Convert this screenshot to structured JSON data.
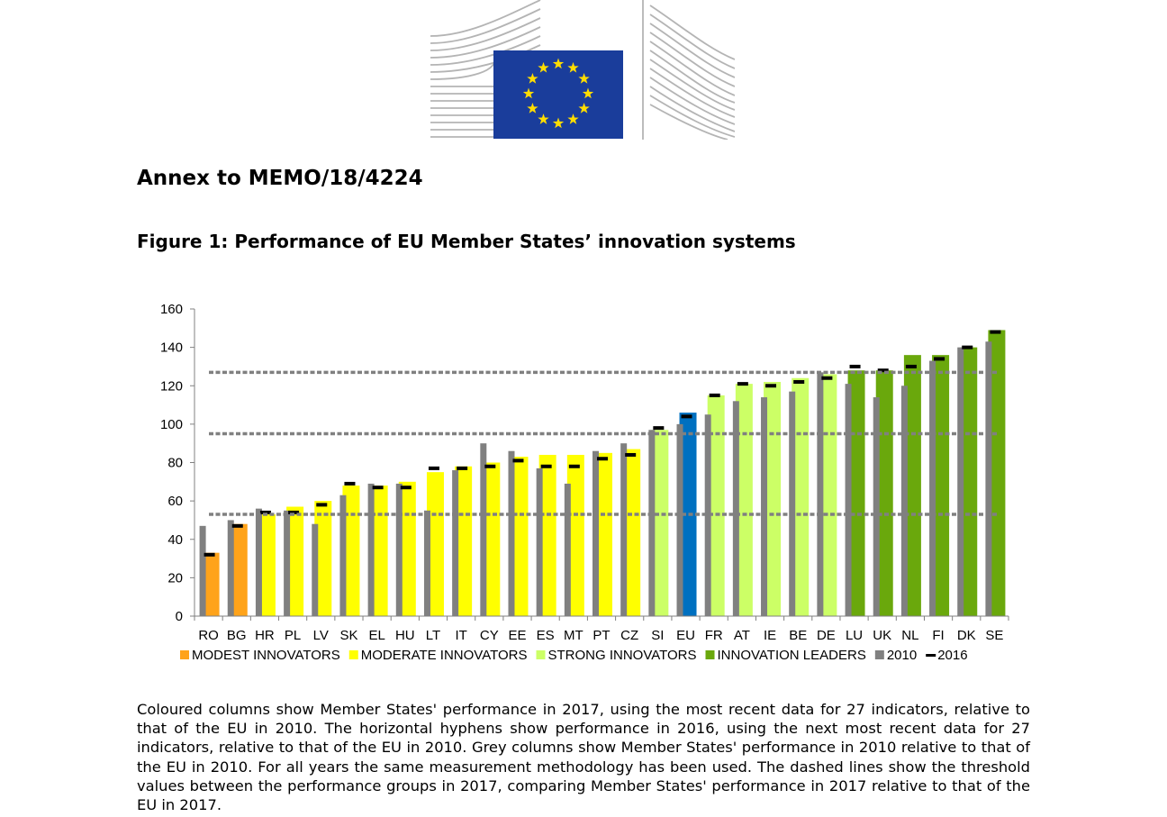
{
  "header": {
    "logo": "european-commission-logo",
    "title": "Annex to MEMO/18/4224"
  },
  "figure": {
    "title": "Figure 1: Performance of EU Member States’ innovation systems"
  },
  "caption": "Coloured columns show Member States' performance in 2017, using the most recent data for 27 indicators, relative to that of the EU in 2010. The horizontal hyphens show performance in 2016, using the next most recent data for 27 indicators, relative to that of the EU in 2010. Grey columns show Member States' performance in 2010 relative to that of the EU in 2010. For all years the same measurement methodology has been used. The dashed lines show the threshold values between the performance groups in 2017, comparing Member States' performance in 2017 relative to that of the EU in 2017.",
  "colors": {
    "modest": "#ffa31a",
    "moderate": "#ffff00",
    "strong": "#ccff66",
    "leaders": "#6aa80c",
    "eu": "#0070c0",
    "grey2010": "#808080",
    "marker2016": "#000000",
    "threshold": "#808080",
    "axis": "#808080",
    "flag": "#1a3d9b",
    "flagStar": "#ffdd00"
  },
  "chart_data": {
    "type": "bar",
    "title": "Figure 1: Performance of EU Member States’ innovation systems",
    "xlabel": "",
    "ylabel": "",
    "ylim": [
      0,
      160
    ],
    "yticks": [
      "0",
      "20",
      "40",
      "60",
      "80",
      "100",
      "120",
      "140",
      "160"
    ],
    "thresholds": [
      53,
      95,
      127
    ],
    "categories": [
      "RO",
      "BG",
      "HR",
      "PL",
      "LV",
      "SK",
      "EL",
      "HU",
      "LT",
      "IT",
      "CY",
      "EE",
      "ES",
      "MT",
      "PT",
      "CZ",
      "SI",
      "EU",
      "FR",
      "AT",
      "IE",
      "BE",
      "DE",
      "LU",
      "UK",
      "NL",
      "FI",
      "DK",
      "SE"
    ],
    "groups": [
      "modest",
      "modest",
      "moderate",
      "moderate",
      "moderate",
      "moderate",
      "moderate",
      "moderate",
      "moderate",
      "moderate",
      "moderate",
      "moderate",
      "moderate",
      "moderate",
      "moderate",
      "moderate",
      "strong",
      "eu",
      "strong",
      "strong",
      "strong",
      "strong",
      "strong",
      "leaders",
      "leaders",
      "leaders",
      "leaders",
      "leaders",
      "leaders"
    ],
    "series": [
      {
        "name": "2017",
        "values": [
          33,
          48,
          53,
          57,
          60,
          68,
          68,
          70,
          75,
          78,
          80,
          83,
          84,
          84,
          85,
          87,
          97,
          106,
          115,
          121,
          122,
          124,
          126,
          128,
          128,
          136,
          136,
          140,
          149
        ]
      },
      {
        "name": "2010",
        "values": [
          47,
          50,
          56,
          55,
          48,
          63,
          69,
          69,
          55,
          76,
          90,
          86,
          77,
          69,
          86,
          90,
          97,
          100,
          105,
          112,
          114,
          117,
          127,
          121,
          114,
          120,
          133,
          140,
          143
        ]
      },
      {
        "name": "2016",
        "values": [
          32,
          47,
          54,
          54,
          58,
          69,
          67,
          67,
          77,
          77,
          78,
          81,
          78,
          78,
          82,
          84,
          98,
          104,
          115,
          121,
          120,
          122,
          124,
          130,
          128,
          130,
          134,
          140,
          148
        ]
      }
    ],
    "legend": [
      {
        "key": "modest",
        "label": "MODEST INNOVATORS",
        "kind": "square"
      },
      {
        "key": "moderate",
        "label": "MODERATE INNOVATORS",
        "kind": "square"
      },
      {
        "key": "strong",
        "label": "STRONG INNOVATORS",
        "kind": "square"
      },
      {
        "key": "leaders",
        "label": "INNOVATION LEADERS",
        "kind": "square"
      },
      {
        "key": "grey2010",
        "label": "2010",
        "kind": "square"
      },
      {
        "key": "marker2016",
        "label": "2016",
        "kind": "dash"
      }
    ],
    "legend_position": "bottom"
  }
}
